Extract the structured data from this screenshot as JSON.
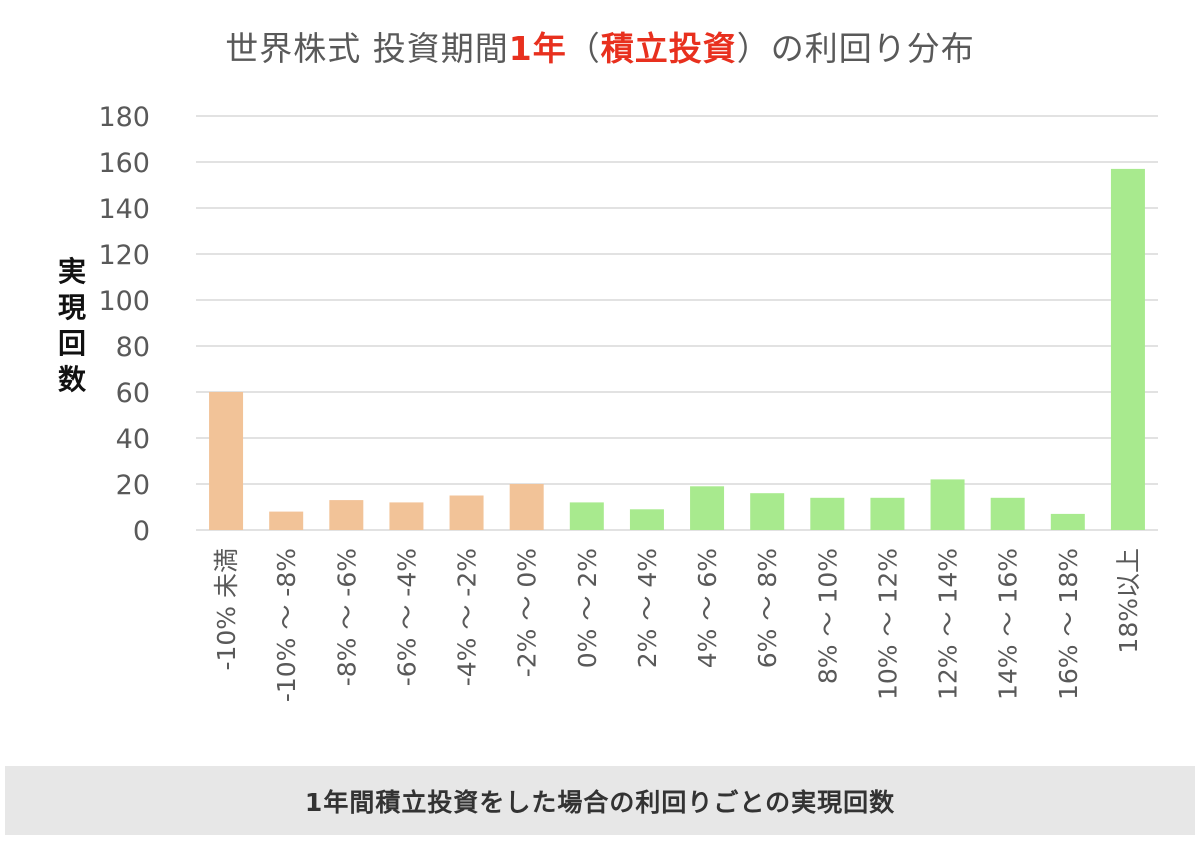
{
  "title": {
    "part1": "世界株式 投資期間",
    "part2": "1年",
    "part3": "（",
    "part4": "積立投資",
    "part5": "）",
    "part6": "の利回り分布"
  },
  "caption": "1年間積立投資をした場合の利回りごとの実現回数",
  "colors": {
    "negative": "#f2c398",
    "positive": "#a8ea8e",
    "grid": "#d9d9d9",
    "axis_text": "#595959",
    "title_highlight": "#e8301e"
  },
  "chart_data": {
    "type": "bar",
    "title": "世界株式 投資期間1年（積立投資）の利回り分布",
    "xlabel": "",
    "ylabel": "実現回数",
    "ylim": [
      0,
      180
    ],
    "yticks": [
      0,
      20,
      40,
      60,
      80,
      100,
      120,
      140,
      160,
      180
    ],
    "grid": true,
    "categories": [
      "-10% 未満",
      "-10% ～ -8%",
      "-8% ～ -6%",
      "-6% ～ -4%",
      "-4% ～ -2%",
      "-2% ～ 0%",
      "0% ～ 2%",
      "2% ～ 4%",
      "4% ～ 6%",
      "6% ～ 8%",
      "8% ～ 10%",
      "10% ～ 12%",
      "12% ～ 14%",
      "14% ～ 16%",
      "16% ～ 18%",
      "18%以上"
    ],
    "values": [
      60,
      8,
      13,
      12,
      15,
      20,
      12,
      9,
      19,
      16,
      14,
      14,
      22,
      14,
      7,
      157
    ],
    "bar_colors": [
      "negative",
      "negative",
      "negative",
      "negative",
      "negative",
      "negative",
      "positive",
      "positive",
      "positive",
      "positive",
      "positive",
      "positive",
      "positive",
      "positive",
      "positive",
      "positive"
    ]
  }
}
